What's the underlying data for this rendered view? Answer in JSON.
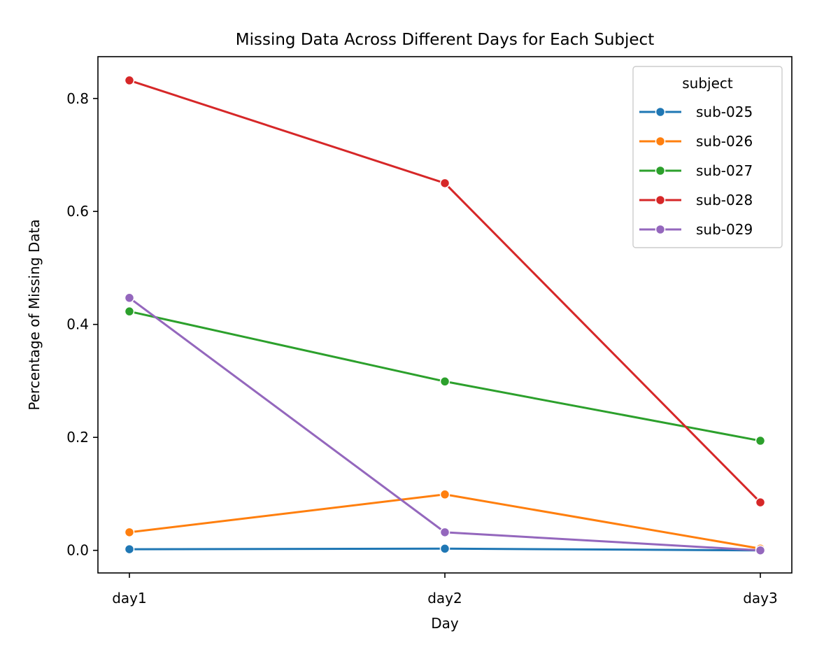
{
  "chart_data": {
    "type": "line",
    "title": "Missing Data Across Different Days for Each Subject",
    "xlabel": "Day",
    "ylabel": "Percentage of Missing Data",
    "categories": [
      "day1",
      "day2",
      "day3"
    ],
    "ylim": [
      -0.04,
      0.874
    ],
    "yticks": [
      0.0,
      0.2,
      0.4,
      0.6,
      0.8
    ],
    "ytick_labels": [
      "0.0",
      "0.2",
      "0.4",
      "0.6",
      "0.8"
    ],
    "grid": false,
    "legend": {
      "title": "subject",
      "placement": "top-right"
    },
    "series": [
      {
        "name": "sub-025",
        "color": "#1f77b4",
        "values": [
          0.002,
          0.003,
          0.0
        ]
      },
      {
        "name": "sub-026",
        "color": "#ff7f0e",
        "values": [
          0.032,
          0.099,
          0.003
        ]
      },
      {
        "name": "sub-027",
        "color": "#2ca02c",
        "values": [
          0.423,
          0.299,
          0.194
        ]
      },
      {
        "name": "sub-028",
        "color": "#d62728",
        "values": [
          0.832,
          0.65,
          0.085
        ]
      },
      {
        "name": "sub-029",
        "color": "#9467bd",
        "values": [
          0.447,
          0.032,
          0.0
        ]
      }
    ]
  }
}
